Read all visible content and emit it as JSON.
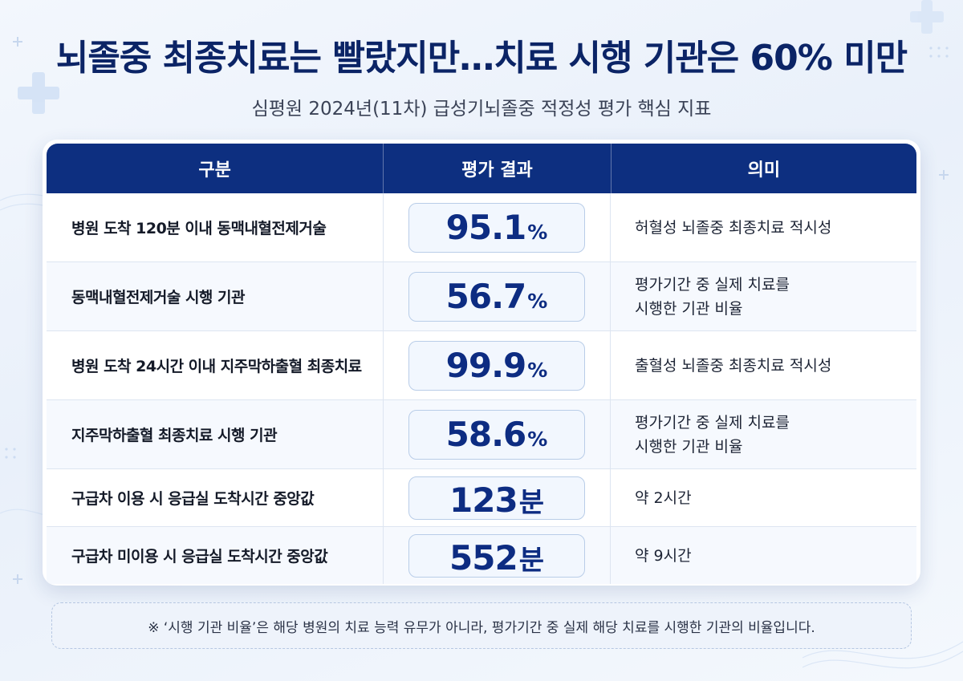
{
  "header": {
    "title": "뇌졸중 최종치료는 빨랐지만…치료 시행 기관은 60% 미만",
    "subtitle": "심평원 2024년(11차) 급성기뇌졸중 적정성 평가 핵심 지표"
  },
  "table": {
    "columns": [
      "구분",
      "평가 결과",
      "의미"
    ],
    "rows": [
      {
        "label": "병원 도착 120분 이내 동맥내혈전제거술",
        "value": "95.1",
        "unit": "%",
        "meaning": [
          "허혈성 뇌졸중 최종치료 적시성"
        ]
      },
      {
        "label": "동맥내혈전제거술 시행 기관",
        "value": "56.7",
        "unit": "%",
        "meaning": [
          "평가기간 중 실제 치료를",
          "시행한 기관 비율"
        ]
      },
      {
        "label": "병원 도착 24시간 이내 지주막하출혈 최종치료",
        "value": "99.9",
        "unit": "%",
        "meaning": [
          "출혈성 뇌졸중 최종치료 적시성"
        ]
      },
      {
        "label": "지주막하출혈 최종치료 시행 기관",
        "value": "58.6",
        "unit": "%",
        "meaning": [
          "평가기간 중 실제 치료를",
          "시행한 기관 비율"
        ]
      },
      {
        "label": "구급차 이용 시 응급실 도착시간 중앙값",
        "value": "123",
        "unit": "분",
        "meaning": [
          "약 2시간"
        ]
      },
      {
        "label": "구급차 미이용 시 응급실 도착시간 중앙값",
        "value": "552",
        "unit": "분",
        "meaning": [
          "약 9시간"
        ]
      }
    ]
  },
  "footnote": "※ ‘시행 기관 비율’은 해당 병원의 치료 능력 유무가 아니라, 평가기간 중 실제 해당 치료를 시행한 기관의 비율입니다.",
  "colors": {
    "navy": "#0d2f80",
    "value_text": "#0d2c82",
    "background": "#eef3fb"
  }
}
